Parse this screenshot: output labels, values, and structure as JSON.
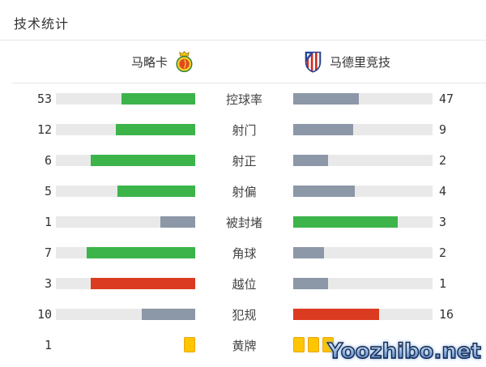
{
  "title": "技术统计",
  "teams": {
    "home": {
      "name": "马略卡",
      "crest": "mallorca-crest"
    },
    "away": {
      "name": "马德里竞技",
      "crest": "atletico-madrid-crest"
    }
  },
  "palette": {
    "green": "#3cb44a",
    "gray": "#8c97a7",
    "red": "#db3b21",
    "yellow": "#fdc502",
    "track": "#e9e9e9"
  },
  "rows": [
    {
      "label": "控球率",
      "home": {
        "value": "53",
        "color": "green"
      },
      "away": {
        "value": "47",
        "color": "gray"
      }
    },
    {
      "label": "射门",
      "home": {
        "value": "12",
        "color": "green"
      },
      "away": {
        "value": "9",
        "color": "gray"
      }
    },
    {
      "label": "射正",
      "home": {
        "value": "6",
        "color": "green"
      },
      "away": {
        "value": "2",
        "color": "gray"
      }
    },
    {
      "label": "射偏",
      "home": {
        "value": "5",
        "color": "green"
      },
      "away": {
        "value": "4",
        "color": "gray"
      }
    },
    {
      "label": "被封堵",
      "home": {
        "value": "1",
        "color": "gray"
      },
      "away": {
        "value": "3",
        "color": "green"
      }
    },
    {
      "label": "角球",
      "home": {
        "value": "7",
        "color": "green"
      },
      "away": {
        "value": "2",
        "color": "gray"
      }
    },
    {
      "label": "越位",
      "home": {
        "value": "3",
        "color": "red"
      },
      "away": {
        "value": "1",
        "color": "gray"
      }
    },
    {
      "label": "犯规",
      "home": {
        "value": "10",
        "color": "gray"
      },
      "away": {
        "value": "16",
        "color": "red"
      }
    },
    {
      "label": "黄牌",
      "type": "cards",
      "home": {
        "value": "1",
        "cards": 1
      },
      "away": {
        "value": "",
        "cards": 3
      }
    }
  ],
  "watermark": "Yoozhibo.net",
  "chart_data": {
    "type": "bar",
    "orientation": "horizontal-paired",
    "title": "技术统计",
    "categories": [
      "控球率",
      "射门",
      "射正",
      "射偏",
      "被封堵",
      "角球",
      "越位",
      "犯规",
      "黄牌"
    ],
    "series": [
      {
        "name": "马略卡",
        "values": [
          53,
          12,
          6,
          5,
          1,
          7,
          3,
          10,
          1
        ]
      },
      {
        "name": "马德里竞技",
        "values": [
          47,
          9,
          2,
          4,
          3,
          2,
          1,
          16,
          3
        ]
      }
    ],
    "bar_colors": {
      "马略卡": [
        "green",
        "green",
        "green",
        "green",
        "gray",
        "green",
        "red",
        "gray",
        "yellow-cards"
      ],
      "马德里竞技": [
        "gray",
        "gray",
        "gray",
        "gray",
        "green",
        "gray",
        "gray",
        "red",
        "yellow-cards"
      ]
    },
    "notes": "每行左右条从中间标签向外/由内侧起始填充，填充比例 = 值/(左值+右值)；黄牌行以黄牌图标显示"
  }
}
